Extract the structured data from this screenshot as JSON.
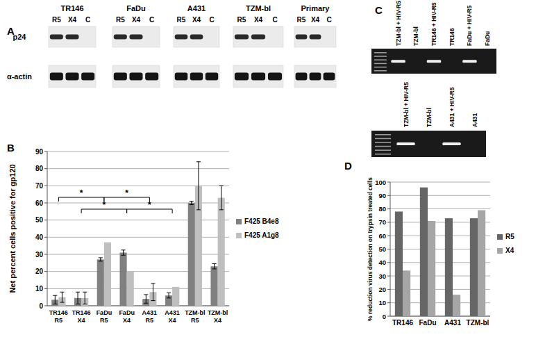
{
  "panel_labels": [
    "A",
    "B",
    "C",
    "D"
  ],
  "blot": {
    "rows": [
      "p24",
      "α-actin"
    ],
    "groups": [
      {
        "name": "TR146",
        "lanes": [
          {
            "label": "R5",
            "bands": [
              true,
              true
            ]
          },
          {
            "label": "X4",
            "bands": [
              true,
              true
            ]
          },
          {
            "label": "C",
            "bands": [
              false,
              true
            ]
          }
        ]
      },
      {
        "name": "FaDu",
        "lanes": [
          {
            "label": "R5",
            "bands": [
              true,
              true
            ]
          },
          {
            "label": "X4",
            "bands": [
              true,
              true
            ]
          },
          {
            "label": "C",
            "bands": [
              false,
              true
            ]
          }
        ]
      },
      {
        "name": "A431",
        "lanes": [
          {
            "label": "R5",
            "bands": [
              true,
              true
            ]
          },
          {
            "label": "X4",
            "bands": [
              true,
              true
            ]
          },
          {
            "label": "C",
            "bands": [
              false,
              true
            ]
          }
        ]
      },
      {
        "name": "TZM-bl",
        "lanes": [
          {
            "label": "R5",
            "bands": [
              true,
              true
            ]
          },
          {
            "label": "X4",
            "bands": [
              true,
              true
            ]
          },
          {
            "label": "C",
            "bands": [
              false,
              true
            ]
          }
        ]
      },
      {
        "name": "Primary",
        "lanes": [
          {
            "label": "R5",
            "bands": [
              true,
              true
            ]
          },
          {
            "label": "X4",
            "bands": [
              true,
              true
            ]
          },
          {
            "label": "C",
            "bands": [
              false,
              true
            ]
          }
        ]
      }
    ]
  },
  "gels": [
    {
      "lanes": [
        {
          "label": "TZM-bl + HIV-R5",
          "band": true
        },
        {
          "label": "TZM-bl",
          "band": false
        },
        {
          "label": "TR146 + HIV-R5",
          "band": true
        },
        {
          "label": "TR146",
          "band": false
        },
        {
          "label": "FaDu + HIV-R5",
          "band": true
        },
        {
          "label": "FaDu",
          "band": false
        }
      ]
    },
    {
      "lanes": [
        {
          "label": "TZM-bl + HIV-R5",
          "band": true
        },
        {
          "label": "TZM-bl",
          "band": false
        },
        {
          "label": "A431 + HIV-R5",
          "band": true
        },
        {
          "label": "A431",
          "band": false
        }
      ]
    }
  ],
  "chart_data": [
    {
      "type": "bar",
      "y_label": "Net percent cells positive for gp120",
      "categories": [
        "TR146 R5",
        "TR146 X4",
        "FaDu R5",
        "FaDu X4",
        "A431 R5",
        "A431 X4",
        "TZM-bl R5",
        "TZM-bl X4"
      ],
      "series": [
        {
          "name": "F425 B4e8",
          "color": "#808080",
          "values": [
            3.5,
            4.5,
            27,
            31,
            4,
            6,
            60,
            23
          ],
          "errors": [
            2.5,
            3.5,
            1,
            1.5,
            2.5,
            1.5,
            1,
            1.5
          ]
        },
        {
          "name": "F425 A1g8",
          "color": "#bfbfbf",
          "values": [
            5,
            4.5,
            37,
            20,
            8,
            11,
            70,
            63
          ],
          "errors": [
            3,
            3.5,
            null,
            null,
            5,
            null,
            14,
            7
          ]
        }
      ],
      "ylim": [
        0,
        90
      ],
      "yticks": [
        0,
        10,
        20,
        30,
        40,
        50,
        60,
        70,
        80,
        90
      ],
      "grid": true,
      "legend": "right",
      "annotations": [
        {
          "text": "*",
          "from": "TR146 R5",
          "to": "FaDu R5"
        },
        {
          "text": "*",
          "from": "FaDu R5",
          "to": "A431 R5"
        },
        {
          "text": "*",
          "from": "TR146 X4",
          "to": "FaDu X4"
        },
        {
          "text": "*",
          "from": "FaDu X4",
          "to": "A431 X4"
        }
      ]
    },
    {
      "type": "bar",
      "y_label": "% reduction virus detection on trypsin treated cells",
      "categories": [
        "TR146",
        "FaDu",
        "A431",
        "TZM-bl"
      ],
      "series": [
        {
          "name": "R5",
          "color": "#666666",
          "values": [
            78,
            96,
            73,
            73
          ]
        },
        {
          "name": "X4",
          "color": "#a6a6a6",
          "values": [
            34,
            71,
            16,
            79
          ]
        }
      ],
      "ylim": [
        0,
        100
      ],
      "yticks": [
        0,
        10,
        20,
        30,
        40,
        50,
        60,
        70,
        80,
        90,
        100
      ],
      "grid": true,
      "legend": "right"
    }
  ]
}
